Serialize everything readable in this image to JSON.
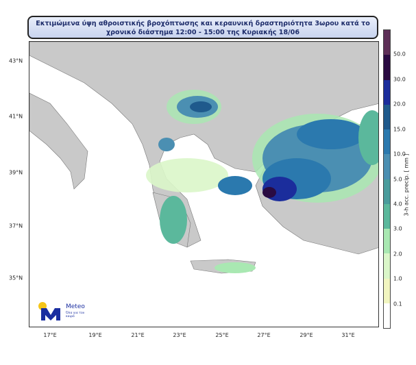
{
  "title": {
    "line1": "Εκτιμώμενα ύψη αθροιστικής βροχόπτωσης και κεραυνική δραστηριότητα 3ωρου κατά το",
    "line2": "χρονικό διάστημα 12:00 - 15:00 της Κυριακής 18/06"
  },
  "axes": {
    "x_ticks": [
      "17°E",
      "19°E",
      "21°E",
      "23°E",
      "25°E",
      "27°E",
      "29°E",
      "31°E"
    ],
    "y_ticks": [
      "43°N",
      "41°N",
      "39°N",
      "37°N",
      "35°N"
    ]
  },
  "colorbar": {
    "label": "3-h acc. precip. [ mm ]",
    "levels": [
      "50.0",
      "30.0",
      "20.0",
      "15.0",
      "10.0",
      "5.0",
      "4.0",
      "3.0",
      "2.0",
      "1.0",
      "0.1"
    ],
    "colors": [
      "#5e2f58",
      "#2a0b42",
      "#1b2d9c",
      "#1f5a8c",
      "#2b79ae",
      "#4b8fb2",
      "#4a9c9c",
      "#5bb89c",
      "#a9e8b2",
      "#daf6c9",
      "#f1f5c0",
      "#ffffff"
    ]
  },
  "logo": {
    "name": "Meteo",
    "tagline": "Όλα για τον καιρό"
  }
}
